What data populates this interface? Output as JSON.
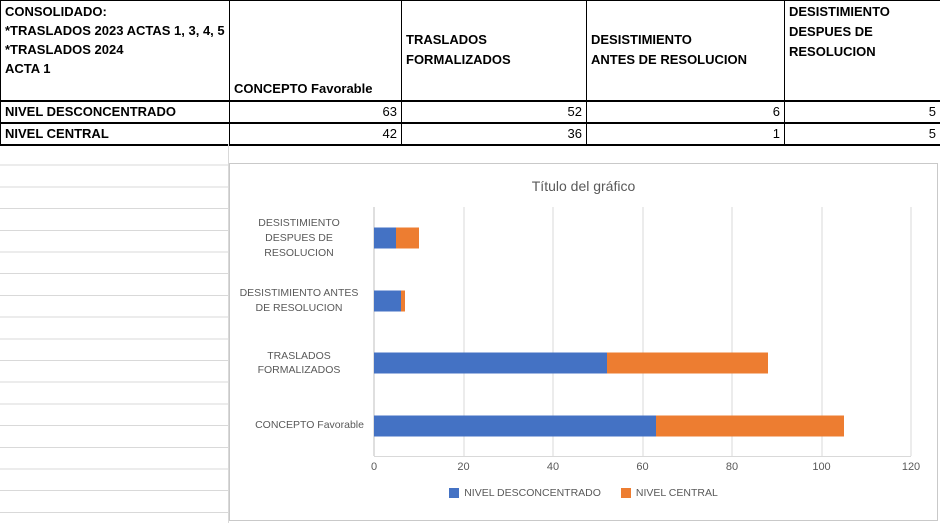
{
  "table": {
    "corner_header": "CONSOLIDADO:\n*TRASLADOS 2023 ACTAS 1, 3, 4, 5\n*TRASLADOS 2024\nACTA 1",
    "columns": [
      "CONCEPTO Favorable",
      "TRASLADOS\nFORMALIZADOS",
      "DESISTIMIENTO\nANTES DE RESOLUCION",
      "DESISTIMIENTO\nDESPUES DE\nRESOLUCION"
    ],
    "rows": [
      {
        "label": "NIVEL DESCONCENTRADO",
        "values": [
          63,
          52,
          6,
          5
        ]
      },
      {
        "label": "NIVEL CENTRAL",
        "values": [
          42,
          36,
          1,
          5
        ]
      }
    ]
  },
  "chart_data": {
    "type": "bar",
    "orientation": "horizontal",
    "stacked": true,
    "title": "Título del gráfico",
    "categories": [
      "CONCEPTO Favorable",
      "TRASLADOS FORMALIZADOS",
      "DESISTIMIENTO ANTES DE RESOLUCION",
      "DESISTIMIENTO DESPUES DE RESOLUCION"
    ],
    "series": [
      {
        "name": "NIVEL DESCONCENTRADO",
        "color": "#4472C4",
        "values": [
          63,
          52,
          6,
          5
        ]
      },
      {
        "name": "NIVEL CENTRAL",
        "color": "#ED7D31",
        "values": [
          42,
          36,
          1,
          5
        ]
      }
    ],
    "xlim": [
      0,
      120
    ],
    "xticks": [
      0,
      20,
      40,
      60,
      80,
      100,
      120
    ],
    "grid": true,
    "legend_position": "bottom"
  }
}
